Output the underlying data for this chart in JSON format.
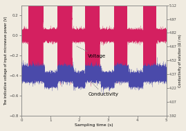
{
  "title": "",
  "xlabel": "Sampling time (s)",
  "ylabel_left": "The indicative voltage of input microwave power (V)",
  "ylabel_right": "Conductivity of solution (Ω / m)",
  "xlim": [
    0,
    5
  ],
  "ylim_left": [
    -0.8,
    0.3
  ],
  "ylim_right": [
    3.92,
    5.12
  ],
  "yticks_left": [
    -0.8,
    -0.6,
    -0.4,
    -0.2,
    0.0,
    0.2
  ],
  "yticks_right": [
    3.92,
    4.07,
    4.22,
    4.37,
    4.52,
    4.67,
    4.82,
    4.97,
    5.12
  ],
  "xticks": [
    0,
    1,
    2,
    3,
    4,
    5
  ],
  "voltage_color": "#d42060",
  "conductivity_color": "#4a4aaa",
  "background_color": "#f0ebe0",
  "annotation_voltage": "Voltage",
  "annotation_conductivity": "Conductivity",
  "voltage_pulses": [
    [
      0.25,
      0.75
    ],
    [
      1.25,
      1.75
    ],
    [
      2.2,
      2.7
    ],
    [
      3.2,
      3.65
    ],
    [
      4.2,
      4.65
    ]
  ],
  "voltage_high": 0.25,
  "voltage_low": -0.27,
  "voltage_base": 0.0,
  "voltage_base_noise": 0.025,
  "voltage_pulse_noise": 0.06,
  "conductivity_mean": -0.44,
  "conductivity_noise": 0.03,
  "conductivity_bump_times": [
    [
      0.0,
      0.8
    ],
    [
      1.25,
      1.8
    ],
    [
      2.2,
      2.75
    ],
    [
      3.2,
      3.7
    ],
    [
      4.2,
      5.0
    ]
  ],
  "conductivity_bump_height": 0.06
}
